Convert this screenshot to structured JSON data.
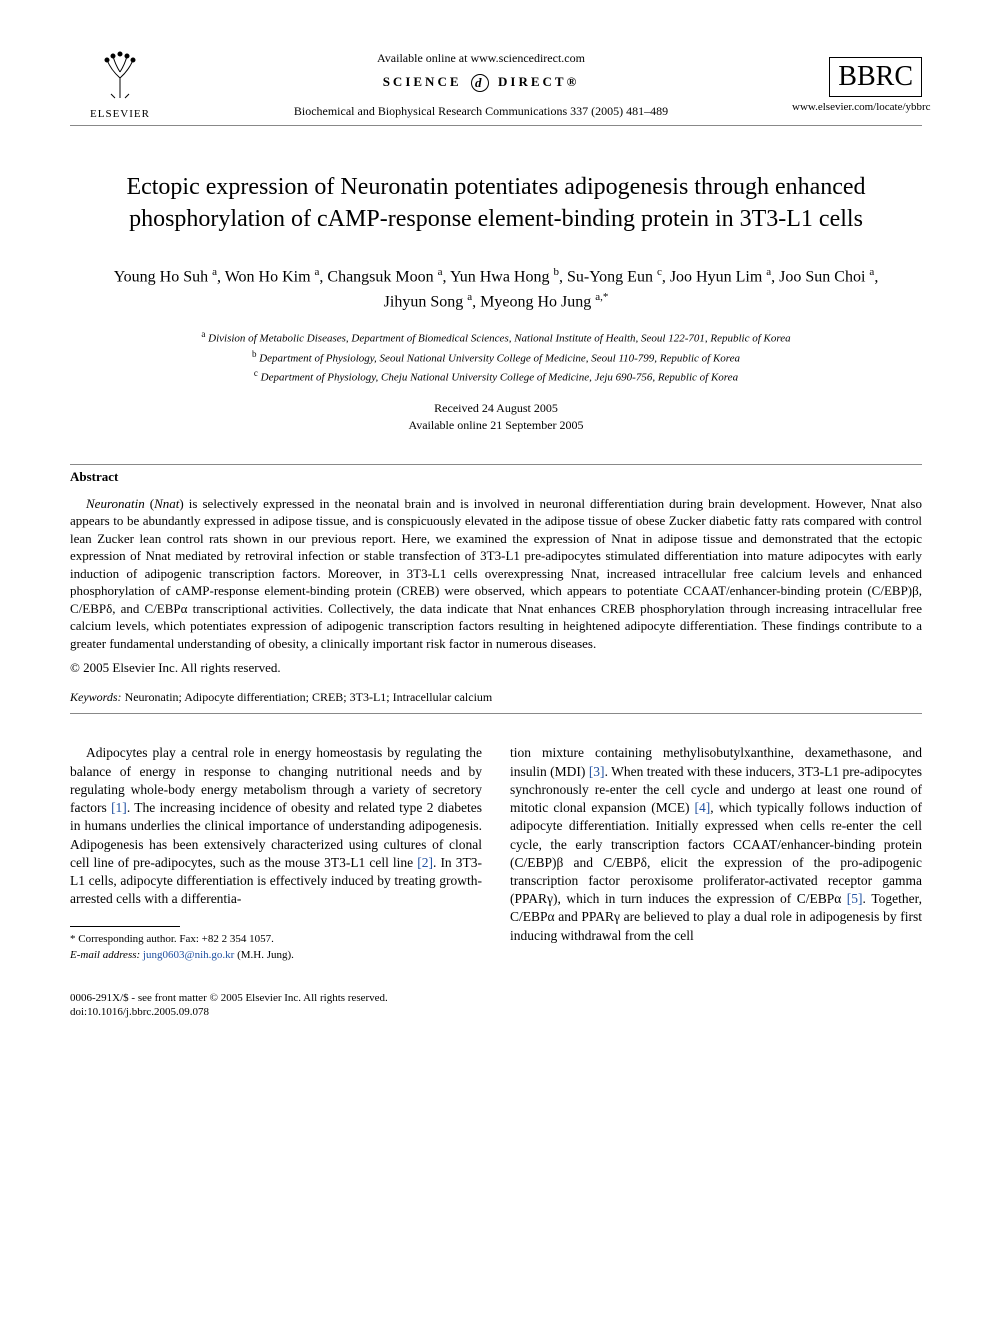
{
  "header": {
    "available_text": "Available online at www.sciencedirect.com",
    "science_direct_left": "SCIENCE",
    "science_direct_right": "DIRECT®",
    "journal_ref": "Biochemical and Biophysical Research Communications 337 (2005) 481–489",
    "elsevier_label": "ELSEVIER",
    "bbrc_label": "BBRC",
    "bbrc_url": "www.elsevier.com/locate/ybbrc"
  },
  "title": "Ectopic expression of Neuronatin potentiates adipogenesis through enhanced phosphorylation of cAMP-response element-binding protein in 3T3-L1 cells",
  "authors_html": "Young Ho Suh <sup>a</sup>, Won Ho Kim <sup>a</sup>, Changsuk Moon <sup>a</sup>, Yun Hwa Hong <sup>b</sup>, Su-Yong Eun <sup>c</sup>, Joo Hyun Lim <sup>a</sup>, Joo Sun Choi <sup>a</sup>, Jihyun Song <sup>a</sup>, Myeong Ho Jung <sup>a,*</sup>",
  "affiliations": [
    {
      "sup": "a",
      "text": "Division of Metabolic Diseases, Department of Biomedical Sciences, National Institute of Health, Seoul 122-701, Republic of Korea"
    },
    {
      "sup": "b",
      "text": "Department of Physiology, Seoul National University College of Medicine, Seoul 110-799, Republic of Korea"
    },
    {
      "sup": "c",
      "text": "Department of Physiology, Cheju National University College of Medicine, Jeju 690-756, Republic of Korea"
    }
  ],
  "dates": {
    "received": "Received 24 August 2005",
    "online": "Available online 21 September 2005"
  },
  "abstract": {
    "heading": "Abstract",
    "body_html": "<em>Neuronatin</em> (<em>Nnat</em>) is selectively expressed in the neonatal brain and is involved in neuronal differentiation during brain development. However, Nnat also appears to be abundantly expressed in adipose tissue, and is conspicuously elevated in the adipose tissue of obese Zucker diabetic fatty rats compared with control lean Zucker lean control rats shown in our previous report. Here, we examined the expression of Nnat in adipose tissue and demonstrated that the ectopic expression of Nnat mediated by retroviral infection or stable transfection of 3T3-L1 pre-adipocytes stimulated differentiation into mature adipocytes with early induction of adipogenic transcription factors. Moreover, in 3T3-L1 cells overexpressing Nnat, increased intracellular free calcium levels and enhanced phosphorylation of cAMP-response element-binding protein (CREB) were observed, which appears to potentiate CCAAT/enhancer-binding protein (C/EBP)β, C/EBPδ, and C/EBPα transcriptional activities. Collectively, the data indicate that Nnat enhances CREB phosphorylation through increasing intracellular free calcium levels, which potentiates expression of adipogenic transcription factors resulting in heightened adipocyte differentiation. These findings contribute to a greater fundamental understanding of obesity, a clinically important risk factor in numerous diseases.",
    "copyright": "© 2005 Elsevier Inc. All rights reserved."
  },
  "keywords": {
    "label": "Keywords:",
    "text": "Neuronatin; Adipocyte differentiation; CREB; 3T3-L1; Intracellular calcium"
  },
  "body": {
    "col1_html": "Adipocytes play a central role in energy homeostasis by regulating the balance of energy in response to changing nutritional needs and by regulating whole-body energy metabolism through a variety of secretory factors <span class=\"ref-link\">[1]</span>. The increasing incidence of obesity and related type 2 diabetes in humans underlies the clinical importance of understanding adipogenesis. Adipogenesis has been extensively characterized using cultures of clonal cell line of pre-adipocytes, such as the mouse 3T3-L1 cell line <span class=\"ref-link\">[2]</span>. In 3T3-L1 cells, adipocyte differentiation is effectively induced by treating growth-arrested cells with a differentia-",
    "col2_html": "tion mixture containing methylisobutylxanthine, dexamethasone, and insulin (MDI) <span class=\"ref-link\">[3]</span>. When treated with these inducers, 3T3-L1 pre-adipocytes synchronously re-enter the cell cycle and undergo at least one round of mitotic clonal expansion (MCE) <span class=\"ref-link\">[4]</span>, which typically follows induction of adipocyte differentiation. Initially expressed when cells re-enter the cell cycle, the early transcription factors CCAAT/enhancer-binding protein (C/EBP)β and C/EBPδ, elicit the expression of the pro-adipogenic transcription factor peroxisome proliferator-activated receptor gamma (PPARγ), which in turn induces the expression of C/EBPα <span class=\"ref-link\">[5]</span>. Together, C/EBPα and PPARγ are believed to play a dual role in adipogenesis by first inducing withdrawal from the cell"
  },
  "footnote": {
    "corr_label": "* Corresponding author. Fax: +82 2 354 1057.",
    "email_label": "E-mail address:",
    "email": "jung0603@nih.go.kr",
    "email_person": "(M.H. Jung)."
  },
  "footer": {
    "issn_line": "0006-291X/$ - see front matter © 2005 Elsevier Inc. All rights reserved.",
    "doi_line": "doi:10.1016/j.bbrc.2005.09.078"
  },
  "colors": {
    "text": "#000000",
    "link": "#2050a0",
    "background": "#ffffff",
    "rule": "#888888"
  }
}
